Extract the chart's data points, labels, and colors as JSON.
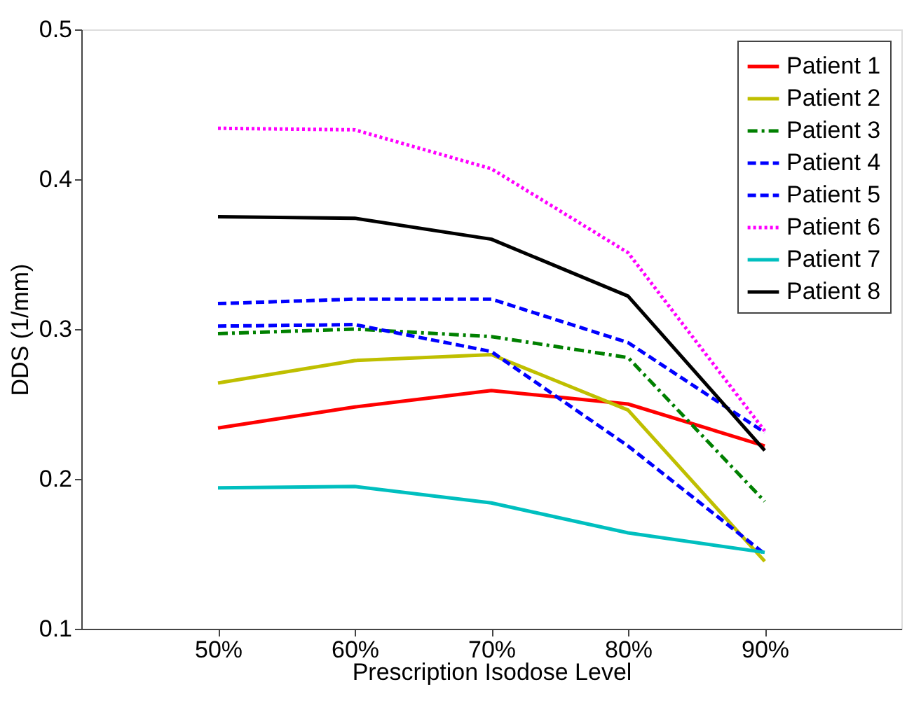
{
  "chart_data": {
    "type": "line",
    "xlabel": "Prescription Isodose Level",
    "ylabel": "DDS (1/mm)",
    "x": [
      50,
      60,
      70,
      80,
      90
    ],
    "xlim": [
      40,
      100
    ],
    "xticks": [
      {
        "value": 50,
        "label": "50%"
      },
      {
        "value": 60,
        "label": "60%"
      },
      {
        "value": 70,
        "label": "70%"
      },
      {
        "value": 80,
        "label": "80%"
      },
      {
        "value": 90,
        "label": "90%"
      }
    ],
    "ylim": [
      0.1,
      0.5
    ],
    "yticks": [
      0.1,
      0.2,
      0.3,
      0.4,
      0.5
    ],
    "grid": false,
    "legend": "top right",
    "marker": "none",
    "series": [
      {
        "name": "Patient 1",
        "color": "#ff0000",
        "line_style": "solid",
        "values": [
          0.234,
          0.248,
          0.259,
          0.25,
          0.222
        ]
      },
      {
        "name": "Patient 2",
        "color": "#bfbf00",
        "line_style": "solid",
        "values": [
          0.264,
          0.279,
          0.283,
          0.246,
          0.145
        ]
      },
      {
        "name": "Patient 3",
        "color": "#008000",
        "line_style": "dashdot",
        "values": [
          0.297,
          0.3,
          0.295,
          0.281,
          0.185
        ]
      },
      {
        "name": "Patient 4",
        "color": "#0000ff",
        "line_style": "dashed",
        "values": [
          0.302,
          0.303,
          0.285,
          0.222,
          0.15
        ]
      },
      {
        "name": "Patient 5",
        "color": "#0000ff",
        "line_style": "dashed",
        "values": [
          0.317,
          0.32,
          0.32,
          0.291,
          0.231
        ]
      },
      {
        "name": "Patient 6",
        "color": "#ff00ff",
        "line_style": "dotted",
        "values": [
          0.434,
          0.433,
          0.407,
          0.351,
          0.232
        ]
      },
      {
        "name": "Patient 7",
        "color": "#00bfbf",
        "line_style": "solid",
        "values": [
          0.194,
          0.195,
          0.184,
          0.164,
          0.151
        ]
      },
      {
        "name": "Patient 8",
        "color": "#000000",
        "line_style": "solid",
        "values": [
          0.375,
          0.374,
          0.36,
          0.322,
          0.219
        ]
      }
    ]
  }
}
